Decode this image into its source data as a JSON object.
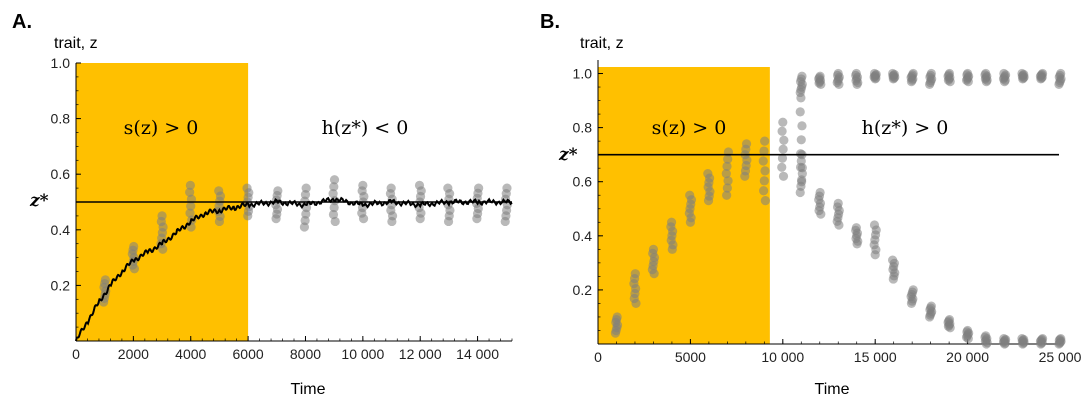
{
  "colors": {
    "shade": "#FFC000",
    "points": "#808080",
    "line": "#000000"
  },
  "chart_data": [
    {
      "panel": "A.",
      "type": "scatter",
      "ylabel": "trait, z",
      "xlabel": "Time",
      "xlim": [
        0,
        15200
      ],
      "ylim": [
        0,
        1
      ],
      "xticks": [
        0,
        2000,
        4000,
        6000,
        8000,
        10000,
        12000,
        14000
      ],
      "xtick_labels": [
        "0",
        "2000",
        "4000",
        "6000",
        "8000",
        "10 000",
        "12 000",
        "14 000"
      ],
      "yticks": [
        0.2,
        0.4,
        0.6,
        0.8,
        1.0
      ],
      "ytick_labels": [
        "0.2",
        "0.4",
        "0.6",
        "0.8",
        "1.0"
      ],
      "threshold": {
        "label": "z*",
        "value": 0.5
      },
      "shaded_region": {
        "x": [
          0,
          6000
        ],
        "label": "s(z) > 0"
      },
      "region_label": "h(z*) < 0",
      "series": [
        {
          "kind": "points",
          "x": [
            1000,
            2000,
            3000,
            4000,
            5000,
            6000,
            7000,
            8000,
            9000,
            10000,
            11000,
            12000,
            13000,
            14000,
            15000
          ],
          "ranges": [
            [
              0.14,
              0.22
            ],
            [
              0.26,
              0.34
            ],
            [
              0.33,
              0.45
            ],
            [
              0.41,
              0.56
            ],
            [
              0.43,
              0.54
            ],
            [
              0.45,
              0.55
            ],
            [
              0.44,
              0.54
            ],
            [
              0.41,
              0.55
            ],
            [
              0.43,
              0.58
            ],
            [
              0.44,
              0.56
            ],
            [
              0.43,
              0.55
            ],
            [
              0.44,
              0.56
            ],
            [
              0.43,
              0.55
            ],
            [
              0.44,
              0.55
            ],
            [
              0.43,
              0.55
            ]
          ]
        },
        {
          "kind": "line",
          "x": [
            0,
            400,
            800,
            1200,
            1600,
            2000,
            2500,
            3000,
            3500,
            4000,
            4500,
            5000,
            5500,
            6000,
            7000,
            8000,
            9000,
            10000,
            11000,
            12000,
            13000,
            14000,
            15200
          ],
          "y": [
            0.0,
            0.07,
            0.14,
            0.2,
            0.25,
            0.29,
            0.32,
            0.35,
            0.39,
            0.43,
            0.46,
            0.47,
            0.48,
            0.49,
            0.5,
            0.49,
            0.51,
            0.49,
            0.5,
            0.49,
            0.5,
            0.5,
            0.5
          ]
        }
      ]
    },
    {
      "panel": "B.",
      "type": "scatter",
      "ylabel": "trait, z",
      "xlabel": "Time",
      "xlim": [
        0,
        25000
      ],
      "ylim": [
        0,
        1.05
      ],
      "xticks": [
        0,
        5000,
        10000,
        15000,
        20000,
        25000
      ],
      "xtick_labels": [
        "0",
        "5000",
        "10 000",
        "15 000",
        "20 000",
        "25 000"
      ],
      "yticks": [
        0.2,
        0.4,
        0.6,
        0.8,
        1.0
      ],
      "ytick_labels": [
        "0.2",
        "0.4",
        "0.6",
        "0.8",
        "1.0"
      ],
      "threshold": {
        "label": "z*",
        "value": 0.7
      },
      "shaded_region": {
        "x": [
          0,
          9300
        ],
        "label": "s(z) > 0"
      },
      "region_label": "h(z*) > 0",
      "series": [
        {
          "kind": "points",
          "x": [
            1000,
            2000,
            3000,
            4000,
            5000,
            6000,
            7000,
            8000,
            9000,
            10000,
            11000
          ],
          "ranges": [
            [
              0.04,
              0.1
            ],
            [
              0.15,
              0.26
            ],
            [
              0.26,
              0.35
            ],
            [
              0.35,
              0.45
            ],
            [
              0.45,
              0.55
            ],
            [
              0.53,
              0.63
            ],
            [
              0.55,
              0.71
            ],
            [
              0.62,
              0.74
            ],
            [
              0.53,
              0.75
            ],
            [
              0.62,
              0.82
            ],
            [
              0.6,
              0.91
            ]
          ]
        },
        {
          "kind": "points",
          "x": [
            11000,
            12000,
            13000,
            14000,
            15000,
            16000,
            17000,
            18000,
            19000,
            20000,
            21000,
            22000,
            23000,
            24000,
            25000
          ],
          "ranges": [
            [
              0.93,
              0.99
            ],
            [
              0.96,
              0.99
            ],
            [
              0.96,
              1.0
            ],
            [
              0.96,
              1.0
            ],
            [
              0.98,
              1.0
            ],
            [
              0.98,
              1.0
            ],
            [
              0.97,
              1.0
            ],
            [
              0.96,
              1.0
            ],
            [
              0.97,
              1.0
            ],
            [
              0.97,
              1.0
            ],
            [
              0.97,
              1.0
            ],
            [
              0.97,
              1.0
            ],
            [
              0.98,
              1.0
            ],
            [
              0.98,
              1.0
            ],
            [
              0.96,
              1.0
            ]
          ]
        },
        {
          "kind": "points",
          "x": [
            11000,
            12000,
            13000,
            14000,
            15000,
            16000,
            17000,
            18000,
            19000,
            20000,
            21000,
            22000,
            23000,
            24000,
            25000
          ],
          "ranges": [
            [
              0.56,
              0.7
            ],
            [
              0.48,
              0.56
            ],
            [
              0.44,
              0.52
            ],
            [
              0.37,
              0.43
            ],
            [
              0.33,
              0.44
            ],
            [
              0.24,
              0.31
            ],
            [
              0.15,
              0.2
            ],
            [
              0.1,
              0.14
            ],
            [
              0.06,
              0.09
            ],
            [
              0.02,
              0.05
            ],
            [
              0.0,
              0.03
            ],
            [
              0.0,
              0.02
            ],
            [
              0.0,
              0.02
            ],
            [
              0.0,
              0.02
            ],
            [
              0.0,
              0.02
            ]
          ]
        }
      ]
    }
  ]
}
